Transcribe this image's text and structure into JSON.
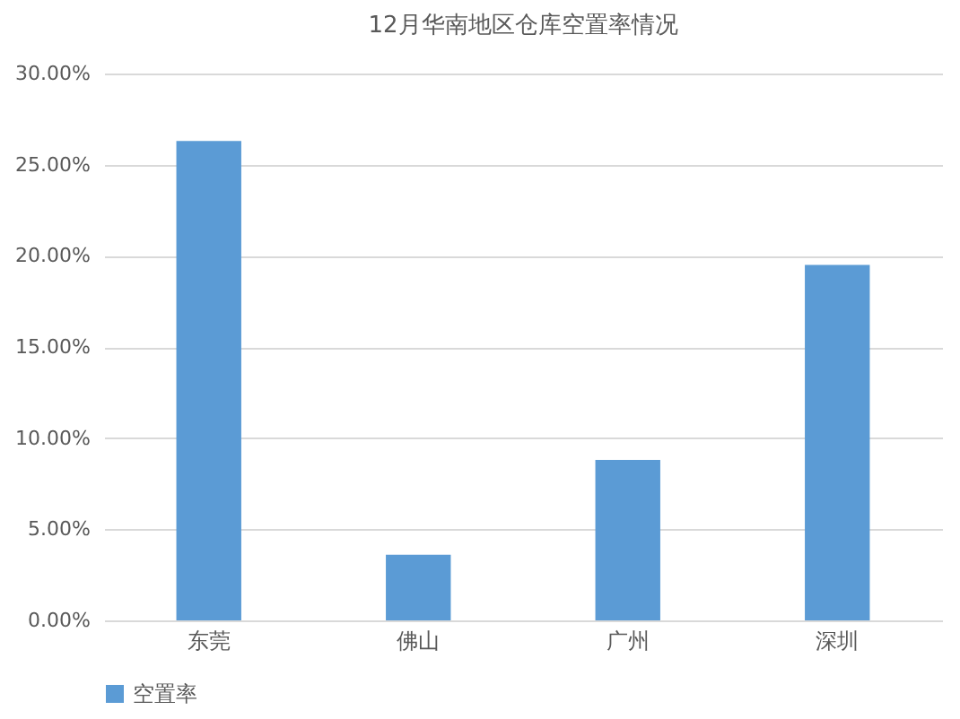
{
  "chart_data": {
    "type": "bar",
    "title": "12月华南地区仓库空置率情况",
    "categories": [
      "东莞",
      "佛山",
      "广州",
      "深圳"
    ],
    "series": [
      {
        "name": "空置率",
        "color": "#5b9bd5",
        "values": [
          26.3,
          3.6,
          8.8,
          19.5
        ]
      }
    ],
    "ylim": [
      0,
      30
    ],
    "yticks": [
      {
        "value": 0,
        "label": "0.00%"
      },
      {
        "value": 5,
        "label": "5.00%"
      },
      {
        "value": 10,
        "label": "10.00%"
      },
      {
        "value": 15,
        "label": "15.00%"
      },
      {
        "value": 20,
        "label": "20.00%"
      },
      {
        "value": 25,
        "label": "25.00%"
      },
      {
        "value": 30,
        "label": "30.00%"
      }
    ],
    "grid": "y",
    "legend": "bottom"
  }
}
